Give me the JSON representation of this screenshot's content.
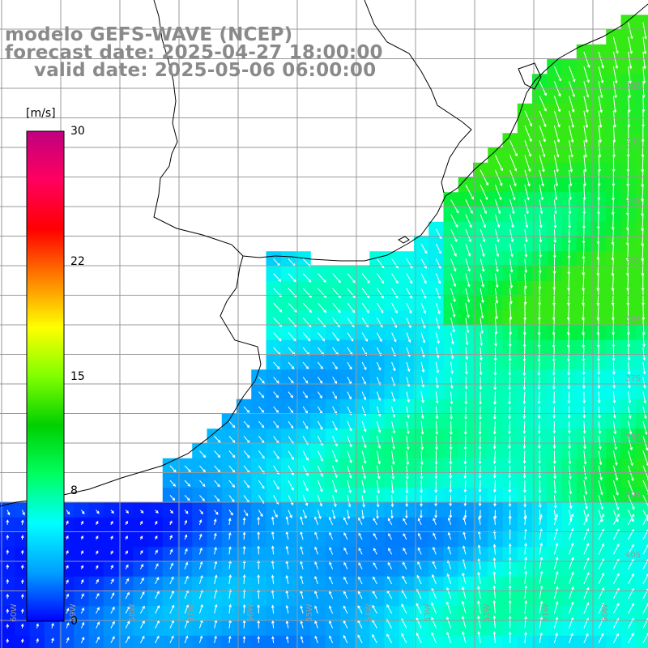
{
  "title": {
    "line1": "modelo GEFS-WAVE (NCEP)",
    "line2": "forecast date: 2025-04-27 18:00:00",
    "line3": "valid date: 2025-05-06 06:00:00"
  },
  "colorbar": {
    "unit": "[m/s]",
    "ticks": [
      {
        "label": "30",
        "value": 30
      },
      {
        "label": "22",
        "value": 22
      },
      {
        "label": "15",
        "value": 15
      },
      {
        "label": "8",
        "value": 8
      },
      {
        "label": "0",
        "value": 0
      }
    ],
    "min": 0,
    "max": 30,
    "stops": [
      "#0000ff",
      "#00a0ff",
      "#00ffff",
      "#00ff60",
      "#00d000",
      "#80ff00",
      "#ffff00",
      "#ff8000",
      "#ff0000",
      "#ff0060",
      "#c00080"
    ]
  },
  "lat_labels": [
    "30S",
    "33S",
    "34S",
    "35S",
    "36S",
    "37S",
    "38S",
    "39S",
    "40S"
  ],
  "lon_labels": [
    "60W",
    "59W",
    "58W",
    "57W",
    "56W",
    "55W",
    "54W",
    "53W",
    "52W",
    "51W",
    "50W"
  ],
  "colors": {
    "grid": "#999999",
    "coast": "#000000",
    "arrow": "#ffffff",
    "title": "#8a8a8a"
  }
}
